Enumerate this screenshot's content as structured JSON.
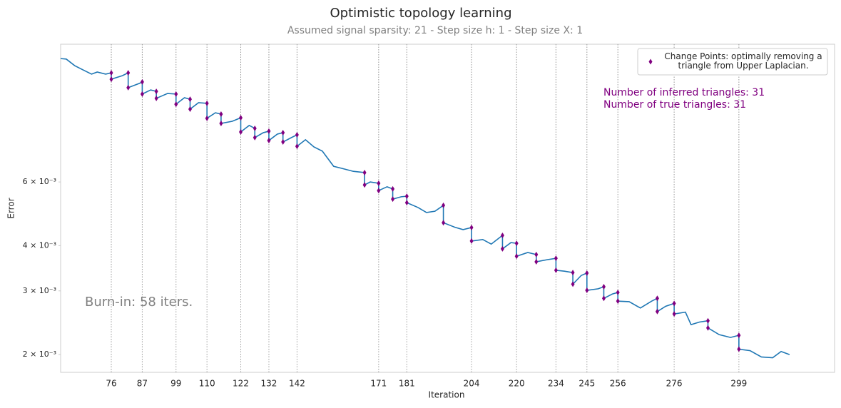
{
  "chart_data": {
    "type": "line",
    "title": "Optimistic topology learning",
    "subtitle": "Assumed signal sparsity: 21  -  Step size h: 1  -  Step size X: 1",
    "x_label": "Iteration",
    "y_label": "Error",
    "y_scale": "log",
    "xlim": [
      58,
      333
    ],
    "ylim": [
      0.001786,
      0.01442
    ],
    "xticks": [
      76,
      87,
      99,
      110,
      122,
      132,
      142,
      171,
      181,
      204,
      220,
      234,
      245,
      256,
      276,
      299
    ],
    "yticks": [
      {
        "value": 0.002,
        "label": "2 × 10⁻³"
      },
      {
        "value": 0.003,
        "label": "3 × 10⁻³"
      },
      {
        "value": 0.004,
        "label": "4 × 10⁻³"
      },
      {
        "value": 0.006,
        "label": "6 × 10⁻³"
      }
    ],
    "x_grid": true,
    "legend": "upper right",
    "series": [
      {
        "kind": "line",
        "color": "#1f77b4",
        "x": [
          58,
          60,
          63,
          66,
          69,
          71,
          74,
          76,
          76,
          80,
          82,
          82,
          86,
          87,
          87,
          90,
          92,
          92,
          96,
          99,
          99,
          102,
          104,
          104,
          107,
          110,
          110,
          113,
          115,
          115,
          119,
          122,
          122,
          125,
          127,
          127,
          130,
          132,
          132,
          135,
          137,
          137,
          140,
          142,
          142,
          145,
          148,
          151,
          155,
          158,
          162,
          166,
          166,
          168,
          171,
          171,
          174,
          176,
          176,
          179,
          181,
          181,
          185,
          188,
          191,
          194,
          194,
          198,
          201,
          204,
          204,
          208,
          211,
          215,
          215,
          218,
          220,
          220,
          224,
          227,
          227,
          231,
          234,
          234,
          237,
          240,
          240,
          243,
          245,
          245,
          249,
          251,
          251,
          254,
          256,
          256,
          260,
          264,
          268,
          270,
          270,
          273,
          276,
          276,
          280,
          282,
          285,
          288,
          288,
          292,
          296,
          299,
          299,
          303,
          307,
          311,
          314,
          317
        ],
        "values": [
          0.01316,
          0.01312,
          0.01258,
          0.01224,
          0.01192,
          0.01208,
          0.01192,
          0.01202,
          0.01154,
          0.01181,
          0.01202,
          0.01094,
          0.01124,
          0.01134,
          0.0105,
          0.01078,
          0.01068,
          0.01022,
          0.01054,
          0.0105,
          0.00984,
          0.01026,
          0.01016,
          0.00954,
          0.00994,
          0.0099,
          0.009,
          0.00932,
          0.00924,
          0.00871,
          0.00883,
          0.00903,
          0.00825,
          0.0086,
          0.00844,
          0.00796,
          0.00821,
          0.00829,
          0.00781,
          0.00814,
          0.00821,
          0.00774,
          0.00796,
          0.0081,
          0.00753,
          0.00785,
          0.0075,
          0.0073,
          0.00663,
          0.00654,
          0.00642,
          0.00637,
          0.00589,
          0.006,
          0.00595,
          0.00568,
          0.00582,
          0.00574,
          0.00538,
          0.00546,
          0.00548,
          0.00526,
          0.0051,
          0.00494,
          0.00498,
          0.00517,
          0.00463,
          0.0045,
          0.00443,
          0.00449,
          0.00412,
          0.00416,
          0.00404,
          0.00427,
          0.00392,
          0.00408,
          0.00406,
          0.00374,
          0.00383,
          0.00378,
          0.00361,
          0.00366,
          0.00369,
          0.00342,
          0.0034,
          0.00337,
          0.00313,
          0.00331,
          0.00336,
          0.00301,
          0.00304,
          0.00308,
          0.00286,
          0.00294,
          0.00297,
          0.00281,
          0.0028,
          0.00269,
          0.00281,
          0.00286,
          0.00263,
          0.00272,
          0.00277,
          0.00259,
          0.00262,
          0.00242,
          0.00246,
          0.00248,
          0.00237,
          0.00227,
          0.00223,
          0.00226,
          0.00207,
          0.00205,
          0.00197,
          0.00196,
          0.00204,
          0.002
        ]
      },
      {
        "kind": "scatter",
        "name": "Change Points: optimally removing a triangle from Upper Laplacian.",
        "color": "#800080",
        "x": [
          76,
          76,
          82,
          82,
          87,
          87,
          92,
          92,
          99,
          99,
          104,
          104,
          110,
          110,
          115,
          115,
          122,
          122,
          127,
          127,
          132,
          132,
          137,
          137,
          142,
          142,
          166,
          166,
          171,
          171,
          176,
          176,
          181,
          181,
          194,
          194,
          204,
          204,
          215,
          215,
          220,
          220,
          227,
          227,
          234,
          234,
          240,
          240,
          245,
          245,
          251,
          251,
          256,
          256,
          270,
          270,
          276,
          276,
          288,
          288,
          299,
          299
        ],
        "values": [
          0.01202,
          0.01154,
          0.01202,
          0.01094,
          0.01134,
          0.0105,
          0.01068,
          0.01022,
          0.0105,
          0.00984,
          0.01016,
          0.00954,
          0.0099,
          0.009,
          0.00924,
          0.00871,
          0.00903,
          0.00825,
          0.00844,
          0.00796,
          0.00829,
          0.00781,
          0.00821,
          0.00774,
          0.0081,
          0.00753,
          0.00637,
          0.00589,
          0.00595,
          0.00568,
          0.00574,
          0.00538,
          0.00548,
          0.00526,
          0.00517,
          0.00463,
          0.00449,
          0.00412,
          0.00427,
          0.00392,
          0.00406,
          0.00374,
          0.00378,
          0.00361,
          0.00369,
          0.00342,
          0.00337,
          0.00313,
          0.00336,
          0.00301,
          0.00308,
          0.00286,
          0.00297,
          0.00281,
          0.00286,
          0.00263,
          0.00277,
          0.00259,
          0.00248,
          0.00237,
          0.00226,
          0.00207
        ]
      }
    ],
    "annotations": [
      {
        "text": "Number of inferred triangles: 31",
        "color": "#800080"
      },
      {
        "text": "Number of true triangles: 31",
        "color": "#800080"
      },
      {
        "text": "Burn-in: 58 iters.",
        "color": "#808080"
      }
    ]
  }
}
